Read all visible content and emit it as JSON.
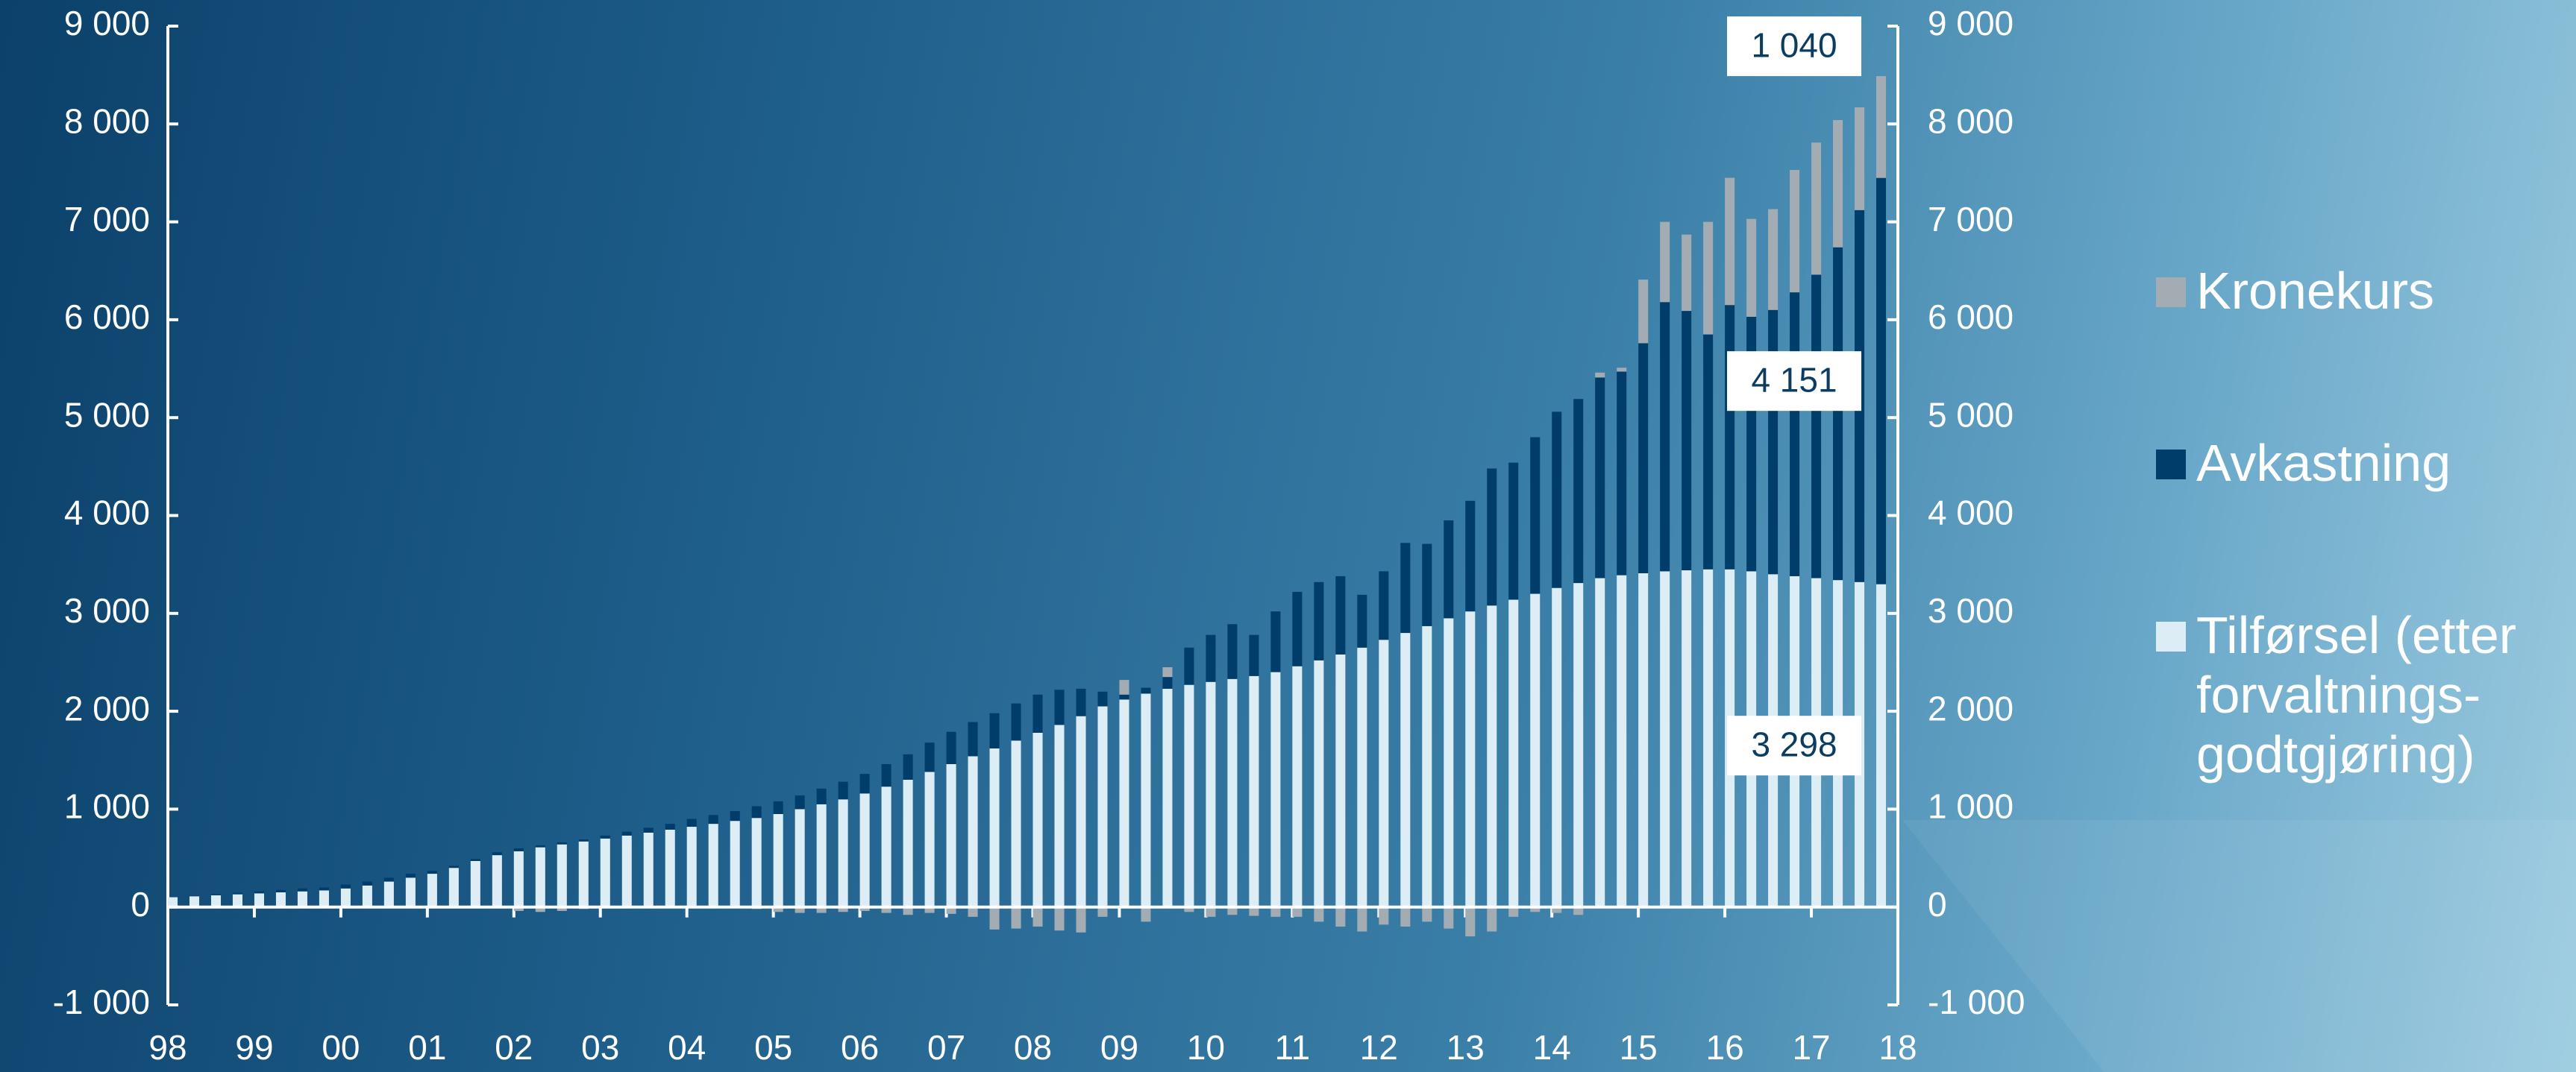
{
  "chart_data": {
    "type": "stacked_bar",
    "x": [
      1998,
      1998.25,
      1998.5,
      1998.75,
      1999,
      1999.25,
      1999.5,
      1999.75,
      2000,
      2000.25,
      2000.5,
      2000.75,
      2001,
      2001.25,
      2001.5,
      2001.75,
      2002,
      2002.25,
      2002.5,
      2002.75,
      2003,
      2003.25,
      2003.5,
      2003.75,
      2004,
      2004.25,
      2004.5,
      2004.75,
      2005,
      2005.25,
      2005.5,
      2005.75,
      2006,
      2006.25,
      2006.5,
      2006.75,
      2007,
      2007.25,
      2007.5,
      2007.75,
      2008,
      2008.25,
      2008.5,
      2008.75,
      2009,
      2009.25,
      2009.5,
      2009.75,
      2010,
      2010.25,
      2010.5,
      2010.75,
      2011,
      2011.25,
      2011.5,
      2011.75,
      2012,
      2012.25,
      2012.5,
      2012.75,
      2013,
      2013.25,
      2013.5,
      2013.75,
      2014,
      2014.25,
      2014.5,
      2014.75,
      2015,
      2015.25,
      2015.5,
      2015.75,
      2016,
      2016.25,
      2016.5,
      2016.75,
      2017,
      2017.25,
      2017.5,
      2017.75
    ],
    "series": [
      {
        "name": "Tilførsel (etter forvaltnings-godtgjøring)",
        "color": "#dcedf5",
        "values": [
          100,
          110,
          120,
          130,
          140,
          150,
          160,
          170,
          190,
          220,
          260,
          300,
          340,
          400,
          470,
          530,
          570,
          610,
          640,
          670,
          700,
          730,
          760,
          790,
          820,
          850,
          880,
          910,
          950,
          1000,
          1050,
          1100,
          1160,
          1230,
          1300,
          1380,
          1460,
          1540,
          1620,
          1700,
          1780,
          1860,
          1950,
          2050,
          2120,
          2180,
          2230,
          2270,
          2300,
          2330,
          2360,
          2400,
          2460,
          2520,
          2580,
          2650,
          2730,
          2800,
          2870,
          2950,
          3020,
          3080,
          3140,
          3200,
          3260,
          3310,
          3360,
          3390,
          3410,
          3430,
          3440,
          3450,
          3450,
          3430,
          3400,
          3380,
          3360,
          3340,
          3320,
          3298
        ],
        "value_labels": [
          null,
          null,
          null,
          null,
          null,
          null,
          null,
          null,
          null,
          null,
          null,
          null,
          null,
          null,
          null,
          null,
          null,
          null,
          null,
          null,
          null,
          null,
          null,
          null,
          null,
          null,
          null,
          null,
          null,
          null,
          null,
          null,
          null,
          null,
          null,
          null,
          null,
          null,
          null,
          null,
          null,
          null,
          null,
          null,
          null,
          null,
          null,
          null,
          null,
          null,
          null,
          null,
          null,
          null,
          null,
          null,
          null,
          null,
          null,
          null,
          null,
          null,
          null,
          null,
          null,
          null,
          null,
          null,
          null,
          null,
          null,
          null,
          null,
          null,
          null,
          null,
          null,
          null,
          null,
          "3 298"
        ]
      },
      {
        "name": "Avkastning",
        "color": "#003d6b",
        "values": [
          0,
          5,
          10,
          15,
          20,
          25,
          30,
          30,
          40,
          40,
          40,
          40,
          30,
          20,
          20,
          30,
          30,
          20,
          20,
          20,
          30,
          40,
          50,
          60,
          80,
          90,
          100,
          120,
          130,
          140,
          160,
          180,
          200,
          230,
          260,
          300,
          330,
          350,
          360,
          380,
          390,
          360,
          280,
          150,
          50,
          60,
          120,
          380,
          480,
          560,
          420,
          620,
          760,
          800,
          800,
          540,
          700,
          920,
          840,
          1000,
          1130,
          1400,
          1400,
          1600,
          1800,
          1880,
          2050,
          2080,
          2350,
          2750,
          2650,
          2400,
          2700,
          2600,
          2700,
          2900,
          3100,
          3400,
          3800,
          4151
        ],
        "value_labels": [
          null,
          null,
          null,
          null,
          null,
          null,
          null,
          null,
          null,
          null,
          null,
          null,
          null,
          null,
          null,
          null,
          null,
          null,
          null,
          null,
          null,
          null,
          null,
          null,
          null,
          null,
          null,
          null,
          null,
          null,
          null,
          null,
          null,
          null,
          null,
          null,
          null,
          null,
          null,
          null,
          null,
          null,
          null,
          null,
          null,
          null,
          null,
          null,
          null,
          null,
          null,
          null,
          null,
          null,
          null,
          null,
          null,
          null,
          null,
          null,
          null,
          null,
          null,
          null,
          null,
          null,
          null,
          null,
          null,
          null,
          null,
          null,
          null,
          null,
          null,
          null,
          null,
          null,
          null,
          "4 151"
        ]
      },
      {
        "name": "Kronekurs",
        "color": "#a3abb3",
        "values": [
          0,
          0,
          0,
          0,
          0,
          0,
          0,
          0,
          0,
          0,
          0,
          0,
          0,
          0,
          0,
          0,
          -40,
          -50,
          -40,
          -20,
          -10,
          0,
          0,
          0,
          0,
          0,
          -10,
          -20,
          -50,
          -60,
          -60,
          -50,
          -40,
          -60,
          -80,
          -60,
          -70,
          -100,
          -230,
          -220,
          -200,
          -240,
          -260,
          -100,
          150,
          -150,
          100,
          -50,
          -100,
          -80,
          -90,
          -100,
          -100,
          -150,
          -200,
          -250,
          -180,
          -200,
          -150,
          -220,
          -300,
          -250,
          -100,
          -50,
          -60,
          -80,
          50,
          40,
          650,
          820,
          780,
          1150,
          1300,
          1000,
          1030,
          1250,
          1350,
          1300,
          1050,
          1040
        ],
        "value_labels": [
          null,
          null,
          null,
          null,
          null,
          null,
          null,
          null,
          null,
          null,
          null,
          null,
          null,
          null,
          null,
          null,
          null,
          null,
          null,
          null,
          null,
          null,
          null,
          null,
          null,
          null,
          null,
          null,
          null,
          null,
          null,
          null,
          null,
          null,
          null,
          null,
          null,
          null,
          null,
          null,
          null,
          null,
          null,
          null,
          null,
          null,
          null,
          null,
          null,
          null,
          null,
          null,
          null,
          null,
          null,
          null,
          null,
          null,
          null,
          null,
          null,
          null,
          null,
          null,
          null,
          null,
          null,
          null,
          null,
          null,
          null,
          null,
          null,
          null,
          null,
          null,
          null,
          null,
          null,
          "1 040"
        ]
      }
    ],
    "xlim": [
      1998,
      2018
    ],
    "xticks": [
      {
        "value": 1998,
        "label": "98"
      },
      {
        "value": 1999,
        "label": "99"
      },
      {
        "value": 2000,
        "label": "00"
      },
      {
        "value": 2001,
        "label": "01"
      },
      {
        "value": 2002,
        "label": "02"
      },
      {
        "value": 2003,
        "label": "03"
      },
      {
        "value": 2004,
        "label": "04"
      },
      {
        "value": 2005,
        "label": "05"
      },
      {
        "value": 2006,
        "label": "06"
      },
      {
        "value": 2007,
        "label": "07"
      },
      {
        "value": 2008,
        "label": "08"
      },
      {
        "value": 2009,
        "label": "09"
      },
      {
        "value": 2010,
        "label": "10"
      },
      {
        "value": 2011,
        "label": "11"
      },
      {
        "value": 2012,
        "label": "12"
      },
      {
        "value": 2013,
        "label": "13"
      },
      {
        "value": 2014,
        "label": "14"
      },
      {
        "value": 2015,
        "label": "15"
      },
      {
        "value": 2016,
        "label": "16"
      },
      {
        "value": 2017,
        "label": "17"
      },
      {
        "value": 2018,
        "label": "18"
      }
    ],
    "ylim": [
      -1000,
      9000
    ],
    "yticks": [
      {
        "value": -1000,
        "label": "-1 000"
      },
      0,
      {
        "value": 1000,
        "label": "1 000"
      },
      {
        "value": 2000,
        "label": "2 000"
      },
      {
        "value": 3000,
        "label": "3 000"
      },
      {
        "value": 4000,
        "label": "4 000"
      },
      {
        "value": 5000,
        "label": "5 000"
      },
      {
        "value": 6000,
        "label": "6 000"
      },
      {
        "value": 7000,
        "label": "7 000"
      },
      {
        "value": 8000,
        "label": "8 000"
      },
      {
        "value": 9000,
        "label": "9 000"
      }
    ],
    "y2lim": [
      -1000,
      9000
    ],
    "y2ticks": [
      {
        "value": -1000,
        "label": "-1 000"
      },
      0,
      {
        "value": 1000,
        "label": "1 000"
      },
      {
        "value": 2000,
        "label": "2 000"
      },
      {
        "value": 3000,
        "label": "3 000"
      },
      {
        "value": 4000,
        "label": "4 000"
      },
      {
        "value": 5000,
        "label": "5 000"
      },
      {
        "value": 6000,
        "label": "6 000"
      },
      {
        "value": 7000,
        "label": "7 000"
      },
      {
        "value": 8000,
        "label": "8 000"
      },
      {
        "value": 9000,
        "label": "9 000"
      }
    ],
    "legend": "right"
  }
}
